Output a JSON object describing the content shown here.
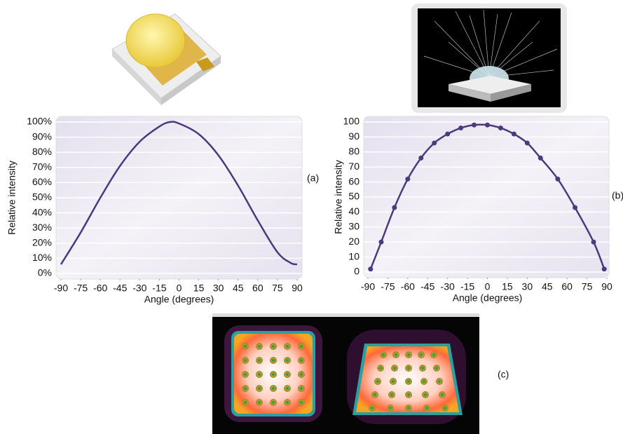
{
  "chart_data": [
    {
      "type": "line",
      "xlabel": "Angle (degrees)",
      "ylabel": "Relative intensity",
      "color": "#4b3a7e",
      "markers": false,
      "grid": true,
      "x": [
        -90,
        -75,
        -60,
        -45,
        -30,
        -15,
        -7,
        0,
        15,
        30,
        45,
        60,
        75,
        85,
        90
      ],
      "values": [
        6,
        27,
        50,
        71,
        87,
        97,
        100,
        99,
        92,
        78,
        58,
        35,
        14,
        7,
        6
      ],
      "xlim": [
        -90,
        90
      ],
      "xticks": [
        -90,
        -75,
        -60,
        -45,
        -30,
        -15,
        0,
        15,
        30,
        45,
        60,
        75,
        90
      ],
      "ylim": [
        0,
        100
      ],
      "yticks": [
        {
          "value": 0,
          "label": "0%"
        },
        {
          "value": 10,
          "label": "10%"
        },
        {
          "value": 20,
          "label": "20%"
        },
        {
          "value": 30,
          "label": "30%"
        },
        {
          "value": 40,
          "label": "40%"
        },
        {
          "value": 50,
          "label": "50%"
        },
        {
          "value": 60,
          "label": "60%"
        },
        {
          "value": 70,
          "label": "70%"
        },
        {
          "value": 80,
          "label": "80%"
        },
        {
          "value": 90,
          "label": "90%"
        },
        {
          "value": 100,
          "label": "100%"
        }
      ],
      "panel_label": "(a)"
    },
    {
      "type": "line",
      "xlabel": "Angle (degrees)",
      "ylabel": "Relative intensity",
      "color": "#4b3a7e",
      "markers": true,
      "grid": true,
      "x": [
        -88,
        -80,
        -70,
        -60,
        -50,
        -40,
        -30,
        -20,
        -10,
        0,
        10,
        20,
        30,
        40,
        53,
        66,
        80,
        88
      ],
      "values": [
        2,
        20,
        43,
        62,
        76,
        86,
        92,
        96,
        98,
        98,
        96,
        92,
        86,
        76,
        62,
        43,
        20,
        2
      ],
      "xlim": [
        -90,
        90
      ],
      "xticks": [
        -90,
        -75,
        -60,
        -45,
        -30,
        -15,
        0,
        15,
        30,
        45,
        60,
        75,
        90
      ],
      "ylim": [
        0,
        100
      ],
      "yticks": [
        0,
        10,
        20,
        30,
        40,
        50,
        60,
        70,
        80,
        90,
        100
      ],
      "panel_label": "(b)"
    }
  ],
  "figure_label": "(c)"
}
